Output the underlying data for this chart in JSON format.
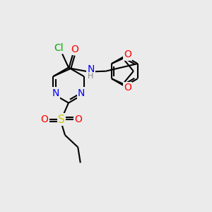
{
  "background_color": "#ebebeb",
  "bond_color": "#000000",
  "atom_colors": {
    "N": "#0000ff",
    "O": "#ff0000",
    "S": "#cccc00",
    "Cl": "#00aa00",
    "C": "#000000",
    "H": "#888888"
  },
  "font_size_atoms": 10,
  "font_size_small": 8,
  "lw": 1.5
}
